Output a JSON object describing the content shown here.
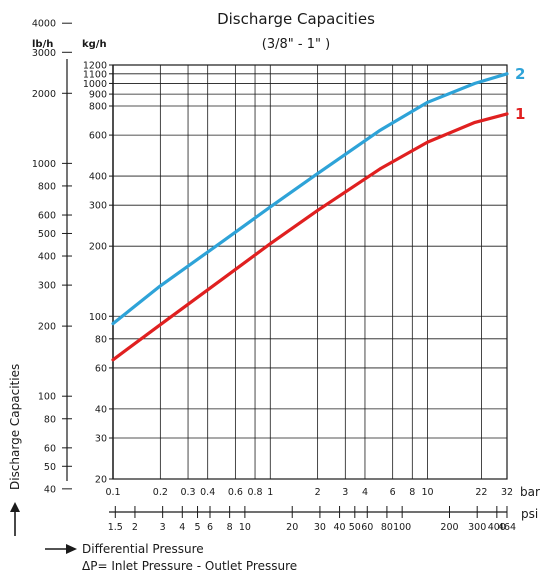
{
  "chart_data": {
    "type": "line",
    "title": "Discharge Capacities",
    "subtitle": "(3/8\" - 1\" )",
    "ylabel": "Discharge Capacities",
    "xscale": "log",
    "yscale": "log",
    "grid": true,
    "xlim": [
      0.1,
      32
    ],
    "ylim": [
      20,
      1200
    ],
    "x_unit": "bar",
    "x2_unit": "psi",
    "y_unit": "kg/h",
    "y2_unit": "lb/h",
    "x_ticks": [
      "0.1",
      "0.2",
      "0.3",
      "0.4",
      "0.6",
      "0.8",
      "1",
      "2",
      "3",
      "4",
      "6",
      "8",
      "10",
      "22",
      "32"
    ],
    "x_tick_values": [
      0.1,
      0.2,
      0.3,
      0.4,
      0.6,
      0.8,
      1,
      2,
      3,
      4,
      6,
      8,
      10,
      22,
      32
    ],
    "x2_ticks": [
      "1.5",
      "2",
      "3",
      "4",
      "5",
      "6",
      "8",
      "10",
      "20",
      "30",
      "40",
      "50",
      "60",
      "80",
      "100",
      "200",
      "300",
      "400",
      "464"
    ],
    "x2_tick_values": [
      1.5,
      2,
      3,
      4,
      5,
      6,
      8,
      10,
      20,
      30,
      40,
      50,
      60,
      80,
      100,
      200,
      300,
      400,
      464
    ],
    "y_ticks": [
      "1200",
      "1100",
      "1000",
      "900",
      "800",
      "600",
      "400",
      "300",
      "200",
      "100",
      "80",
      "60",
      "40",
      "30",
      "20"
    ],
    "y_tick_values": [
      1200,
      1100,
      1000,
      900,
      800,
      600,
      400,
      300,
      200,
      100,
      80,
      60,
      40,
      30,
      20
    ],
    "y2_ticks": [
      "4000",
      "3000",
      "2000",
      "1000",
      "800",
      "600",
      "500",
      "400",
      "300",
      "200",
      "100",
      "80",
      "60",
      "50",
      "40"
    ],
    "y2_tick_values": [
      4000,
      3000,
      2000,
      1000,
      800,
      600,
      500,
      400,
      300,
      200,
      100,
      80,
      60,
      50,
      40
    ],
    "series": [
      {
        "name": "1",
        "color": "#e02020",
        "x": [
          0.1,
          0.2,
          0.5,
          1,
          2,
          5,
          10,
          20,
          32
        ],
        "y": [
          65,
          92,
          145,
          205,
          285,
          430,
          560,
          680,
          740
        ]
      },
      {
        "name": "2",
        "color": "#2ea3d8",
        "x": [
          0.1,
          0.2,
          0.5,
          1,
          2,
          5,
          10,
          20,
          32
        ],
        "y": [
          93,
          135,
          210,
          295,
          410,
          630,
          830,
          1000,
          1100
        ]
      }
    ],
    "footnote": {
      "arrow_label": "Differential Pressure",
      "formula": "ΔP= Inlet Pressure - Outlet Pressure"
    }
  }
}
